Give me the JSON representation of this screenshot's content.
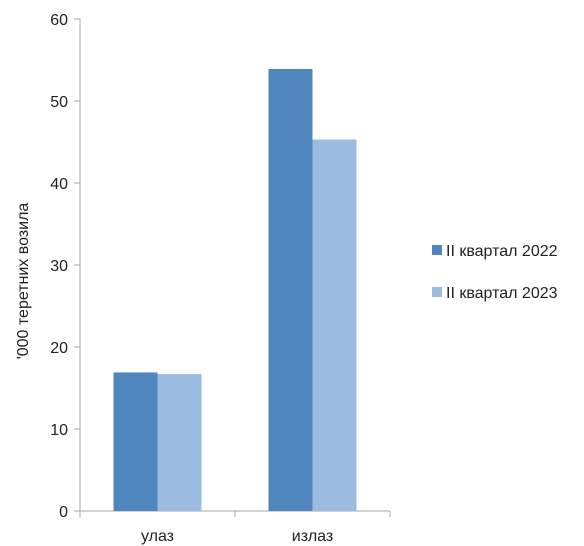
{
  "chart_data": {
    "type": "bar",
    "title": "",
    "xlabel": "",
    "ylabel": "'000 теретних возила",
    "categories": [
      "улаз",
      "излаз"
    ],
    "series": [
      {
        "name": "II квартал 2022",
        "values": [
          16.9,
          53.9
        ],
        "color": "#4f86be"
      },
      {
        "name": "II квартал 2023",
        "values": [
          16.7,
          45.3
        ],
        "color": "#9bbbe0"
      }
    ],
    "ylim": [
      0,
      60
    ],
    "yticks": [
      0,
      10,
      20,
      30,
      40,
      50,
      60
    ],
    "grid": false,
    "legend_position": "right"
  }
}
